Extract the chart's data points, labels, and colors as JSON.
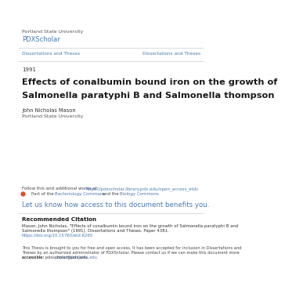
{
  "bg_color": "#ffffff",
  "institution": "Portland State University",
  "site_name": "PDXScholar",
  "site_color": "#4a7ab5",
  "nav_left": "Dissertations and Theses",
  "nav_right": "Dissertations and Theses",
  "nav_color": "#4a7ab5",
  "year": "1991",
  "title_line1": "Effects of conalbumin bound iron on the growth of",
  "title_line2": "Salmonella paratyphi B and Salmonella thompson",
  "title_color": "#1a1a1a",
  "author_name": "John Nicholas Mason",
  "author_affil": "Portland State University",
  "follow_text": "Follow this and additional works at:  https://pdxscholar.library.pdx.edu/open_access_etds",
  "follow_link": "https://pdxscholar.library.pdx.edu/open_access_etds",
  "follow_link_color": "#4a7ab5",
  "part_bacteriology": "Bacteriology Commons",
  "part_biology": "Biology Commons",
  "part_color": "#4a7ab5",
  "cta_text": "Let us know how access to this document benefits you.",
  "cta_color": "#4a7ab5",
  "rec_citation_header": "Recommended Citation",
  "rec_citation_body1": "Mason, John Nicholas, \"Effects of conalbumin bound iron on the growth of Salmonella paratyphi B and",
  "rec_citation_body2": "Salmonella thompson\" (1991). Dissertations and Theses. Paper 4381.",
  "rec_citation_link": "https://doi.org/10.15760/etd.6265",
  "rec_citation_link_color": "#4a7ab5",
  "footer_line1": "This Thesis is brought to you for free and open access. It has been accepted for inclusion in Dissertations and",
  "footer_line2": "Theses by an authorized administrator of PDXScholar. Please contact us if we can make this document more",
  "footer_line3": "accessible: pdxscholar@pdx.edu.",
  "footer_link_color": "#4a7ab5",
  "line_color": "#cccccc",
  "small_font": 4.5,
  "nav_font": 4.2,
  "year_font": 5.0,
  "title_font": 8.2,
  "author_font": 4.8,
  "cta_font": 6.2,
  "rec_header_font": 5.2,
  "rec_body_font": 3.9,
  "footer_font": 3.7
}
